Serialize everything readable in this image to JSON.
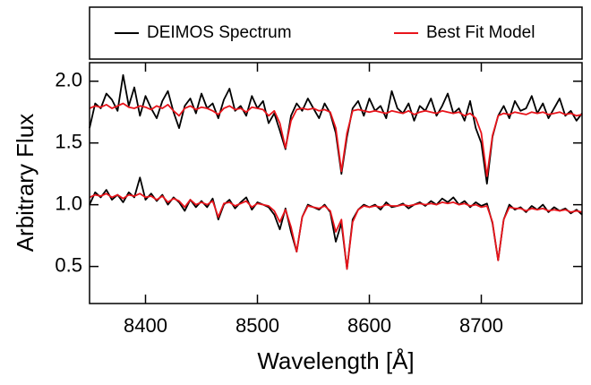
{
  "chart_data": {
    "type": "line",
    "x_label": "Wavelength [Å]",
    "y_label": "Arbitrary Flux",
    "xlim": [
      8350,
      8790
    ],
    "xticks": [
      8400,
      8500,
      8600,
      8700
    ],
    "ylim": [
      0.2,
      2.15
    ],
    "yticks": [
      {
        "value": 0.5,
        "label": "0.5"
      },
      {
        "value": 1.0,
        "label": "1.0"
      },
      {
        "value": 1.5,
        "label": "1.5"
      },
      {
        "value": 2.0,
        "label": "2.0"
      }
    ],
    "legend": "top",
    "x": [
      8350,
      8355,
      8360,
      8365,
      8370,
      8375,
      8380,
      8385,
      8390,
      8395,
      8400,
      8405,
      8410,
      8415,
      8420,
      8425,
      8430,
      8435,
      8440,
      8445,
      8450,
      8455,
      8460,
      8465,
      8470,
      8475,
      8480,
      8485,
      8490,
      8495,
      8500,
      8505,
      8510,
      8515,
      8520,
      8525,
      8530,
      8535,
      8540,
      8545,
      8550,
      8555,
      8560,
      8565,
      8570,
      8575,
      8580,
      8585,
      8590,
      8595,
      8600,
      8605,
      8610,
      8615,
      8620,
      8625,
      8630,
      8635,
      8640,
      8645,
      8650,
      8655,
      8660,
      8665,
      8670,
      8675,
      8680,
      8685,
      8690,
      8695,
      8700,
      8705,
      8710,
      8715,
      8720,
      8725,
      8730,
      8735,
      8740,
      8745,
      8750,
      8755,
      8760,
      8765,
      8770,
      8775,
      8780,
      8785,
      8790
    ],
    "series": [
      {
        "name": "DEIMOS Spectrum",
        "color": "#000000",
        "values": [
          1.62,
          1.82,
          1.78,
          1.9,
          1.85,
          1.76,
          2.05,
          1.8,
          1.95,
          1.72,
          1.88,
          1.78,
          1.7,
          1.84,
          1.92,
          1.75,
          1.62,
          1.8,
          1.86,
          1.74,
          1.9,
          1.78,
          1.82,
          1.7,
          1.85,
          1.94,
          1.76,
          1.8,
          1.72,
          1.88,
          1.78,
          1.84,
          1.66,
          1.74,
          1.6,
          1.45,
          1.72,
          1.82,
          1.76,
          1.86,
          1.78,
          1.7,
          1.82,
          1.74,
          1.58,
          1.25,
          1.55,
          1.78,
          1.84,
          1.72,
          1.86,
          1.76,
          1.8,
          1.7,
          1.92,
          1.78,
          1.74,
          1.82,
          1.68,
          1.8,
          1.76,
          1.86,
          1.72,
          1.8,
          1.9,
          1.74,
          1.78,
          1.68,
          1.84,
          1.62,
          1.5,
          1.17,
          1.55,
          1.72,
          1.8,
          1.7,
          1.84,
          1.76,
          1.78,
          1.88,
          1.74,
          1.82,
          1.7,
          1.78,
          1.86,
          1.72,
          1.76,
          1.68,
          1.74
        ]
      },
      {
        "name": "Best Fit Model",
        "color": "#e8141b",
        "values": [
          1.78,
          1.8,
          1.79,
          1.81,
          1.78,
          1.8,
          1.82,
          1.79,
          1.78,
          1.8,
          1.79,
          1.77,
          1.8,
          1.78,
          1.81,
          1.76,
          1.72,
          1.78,
          1.8,
          1.77,
          1.79,
          1.78,
          1.76,
          1.73,
          1.78,
          1.8,
          1.77,
          1.78,
          1.75,
          1.79,
          1.78,
          1.77,
          1.72,
          1.76,
          1.66,
          1.46,
          1.68,
          1.77,
          1.78,
          1.77,
          1.78,
          1.76,
          1.77,
          1.75,
          1.62,
          1.27,
          1.58,
          1.76,
          1.77,
          1.76,
          1.75,
          1.76,
          1.75,
          1.74,
          1.76,
          1.75,
          1.74,
          1.76,
          1.73,
          1.75,
          1.76,
          1.75,
          1.74,
          1.76,
          1.75,
          1.74,
          1.75,
          1.72,
          1.74,
          1.7,
          1.58,
          1.23,
          1.56,
          1.72,
          1.74,
          1.73,
          1.75,
          1.74,
          1.73,
          1.75,
          1.74,
          1.75,
          1.73,
          1.74,
          1.75,
          1.73,
          1.74,
          1.72,
          1.73
        ]
      },
      {
        "color": "#000000",
        "values": [
          1.0,
          1.1,
          1.06,
          1.12,
          1.04,
          1.08,
          1.02,
          1.1,
          1.06,
          1.22,
          1.04,
          1.09,
          1.03,
          1.08,
          1.0,
          1.06,
          1.02,
          0.95,
          1.04,
          0.98,
          1.03,
          0.98,
          1.05,
          0.88,
          1.0,
          1.04,
          0.97,
          1.02,
          1.06,
          0.96,
          1.02,
          1.0,
          0.98,
          0.92,
          0.8,
          0.97,
          0.78,
          0.62,
          0.9,
          1.0,
          0.98,
          0.96,
          1.0,
          0.94,
          0.7,
          0.85,
          0.48,
          0.88,
          0.96,
          1.0,
          0.98,
          1.0,
          0.96,
          1.02,
          0.98,
          0.99,
          1.01,
          0.97,
          1.0,
          1.02,
          0.99,
          1.03,
          1.0,
          1.05,
          1.02,
          1.06,
          1.0,
          1.03,
          0.98,
          1.02,
          0.99,
          1.01,
          0.85,
          0.55,
          0.88,
          1.0,
          0.96,
          0.98,
          0.94,
          0.99,
          0.96,
          1.0,
          0.94,
          0.98,
          0.95,
          0.97,
          0.93,
          0.96,
          0.92
        ]
      },
      {
        "color": "#e8141b",
        "values": [
          1.06,
          1.08,
          1.07,
          1.09,
          1.06,
          1.08,
          1.05,
          1.08,
          1.07,
          1.09,
          1.06,
          1.07,
          1.04,
          1.07,
          1.02,
          1.05,
          1.03,
          0.98,
          1.04,
          1.0,
          1.02,
          1.0,
          1.03,
          0.9,
          1.01,
          1.02,
          0.99,
          1.01,
          1.03,
          0.98,
          1.01,
          1.0,
          0.99,
          0.95,
          0.86,
          0.96,
          0.82,
          0.62,
          0.9,
          0.99,
          0.98,
          0.97,
          0.99,
          0.95,
          0.78,
          0.88,
          0.48,
          0.86,
          0.96,
          0.99,
          0.98,
          0.99,
          0.98,
          1.0,
          0.99,
          0.99,
          1.0,
          0.99,
          1.0,
          1.01,
          1.0,
          1.01,
          1.0,
          1.02,
          1.01,
          1.02,
          1.0,
          1.01,
          0.99,
          1.0,
          0.98,
          0.99,
          0.86,
          0.55,
          0.88,
          0.98,
          0.97,
          0.97,
          0.95,
          0.97,
          0.96,
          0.97,
          0.95,
          0.96,
          0.95,
          0.96,
          0.94,
          0.95,
          0.94
        ]
      }
    ]
  }
}
